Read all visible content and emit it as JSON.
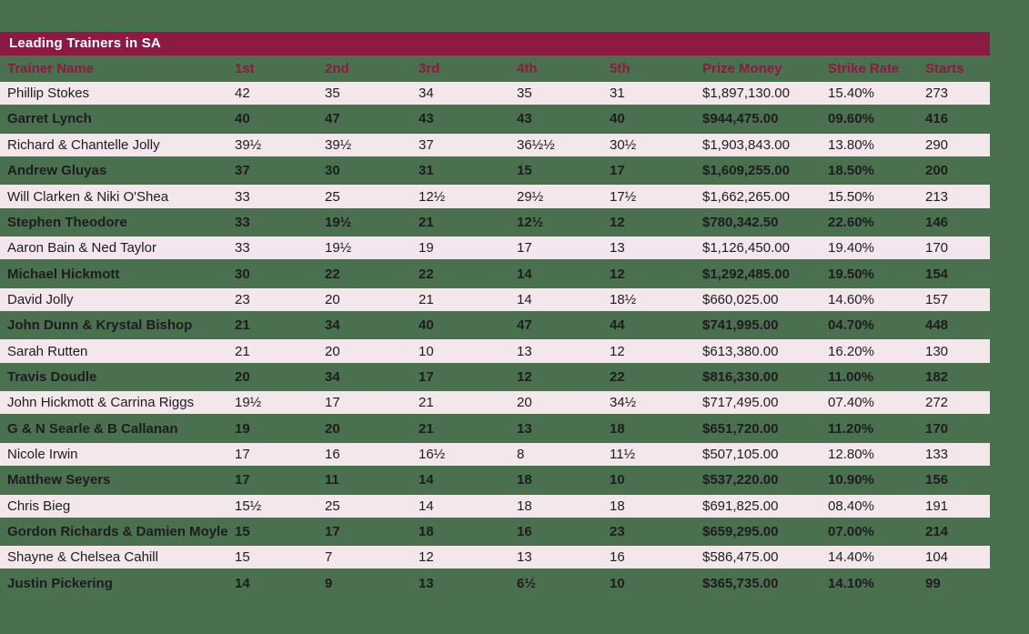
{
  "page": {
    "background_color": "#4A7050",
    "accent_color": "#8C1B41",
    "row_stripe_color": "#F3E7EB",
    "title_text_color": "#FFFFFF",
    "body_text_color": "#1D1D1D"
  },
  "header": {
    "title": "Leading Trainers in SA"
  },
  "chart_data": {
    "type": "table",
    "title": "Leading Trainers in SA",
    "legend_position": "none",
    "grid": "row-striping",
    "columns": [
      "Trainer Name",
      "1st",
      "2nd",
      "3rd",
      "4th",
      "5th",
      "Prize Money",
      "Strike Rate",
      "Starts"
    ],
    "rows": [
      [
        "Phillip Stokes",
        "42",
        "35",
        "34",
        "35",
        "31",
        "$1,897,130.00",
        "15.40%",
        "273"
      ],
      [
        "Garret Lynch",
        "40",
        "47",
        "43",
        "43",
        "40",
        "$944,475.00",
        "09.60%",
        "416"
      ],
      [
        "Richard & Chantelle Jolly",
        "39½",
        "39½",
        "37",
        "36½½",
        "30½",
        "$1,903,843.00",
        "13.80%",
        "290"
      ],
      [
        "Andrew Gluyas",
        "37",
        "30",
        "31",
        "15",
        "17",
        "$1,609,255.00",
        "18.50%",
        "200"
      ],
      [
        "Will Clarken & Niki O'Shea",
        "33",
        "25",
        "12½",
        "29½",
        "17½",
        "$1,662,265.00",
        "15.50%",
        "213"
      ],
      [
        "Stephen Theodore",
        "33",
        "19½",
        "21",
        "12½",
        "12",
        "$780,342.50",
        "22.60%",
        "146"
      ],
      [
        "Aaron Bain & Ned Taylor",
        "33",
        "19½",
        "19",
        "17",
        "13",
        "$1,126,450.00",
        "19.40%",
        "170"
      ],
      [
        "Michael Hickmott",
        "30",
        "22",
        "22",
        "14",
        "12",
        "$1,292,485.00",
        "19.50%",
        "154"
      ],
      [
        "David Jolly",
        "23",
        "20",
        "21",
        "14",
        "18½",
        "$660,025.00",
        "14.60%",
        "157"
      ],
      [
        "John Dunn & Krystal Bishop",
        "21",
        "34",
        "40",
        "47",
        "44",
        "$741,995.00",
        "04.70%",
        "448"
      ],
      [
        "Sarah Rutten",
        "21",
        "20",
        "10",
        "13",
        "12",
        "$613,380.00",
        "16.20%",
        "130"
      ],
      [
        "Travis Doudle",
        "20",
        "34",
        "17",
        "12",
        "22",
        "$816,330.00",
        "11.00%",
        "182"
      ],
      [
        "John Hickmott & Carrina Riggs",
        "19½",
        "17",
        "21",
        "20",
        "34½",
        "$717,495.00",
        "07.40%",
        "272"
      ],
      [
        "G & N Searle & B Callanan",
        "19",
        "20",
        "21",
        "13",
        "18",
        "$651,720.00",
        "11.20%",
        "170"
      ],
      [
        "Nicole Irwin",
        "17",
        "16",
        "16½",
        "8",
        "11½",
        "$507,105.00",
        "12.80%",
        "133"
      ],
      [
        "Matthew Seyers",
        "17",
        "11",
        "14",
        "18",
        "10",
        "$537,220.00",
        "10.90%",
        "156"
      ],
      [
        "Chris Bieg",
        "15½",
        "25",
        "14",
        "18",
        "18",
        "$691,825.00",
        "08.40%",
        "191"
      ],
      [
        "Gordon Richards & Damien Moyle",
        "15",
        "17",
        "18",
        "16",
        "23",
        "$659,295.00",
        "07.00%",
        "214"
      ],
      [
        "Shayne & Chelsea Cahill",
        "15",
        "7",
        "12",
        "13",
        "16",
        "$586,475.00",
        "14.40%",
        "104"
      ],
      [
        "Justin Pickering",
        "14",
        "9",
        "13",
        "6½",
        "10",
        "$365,735.00",
        "14.10%",
        "99"
      ]
    ]
  }
}
